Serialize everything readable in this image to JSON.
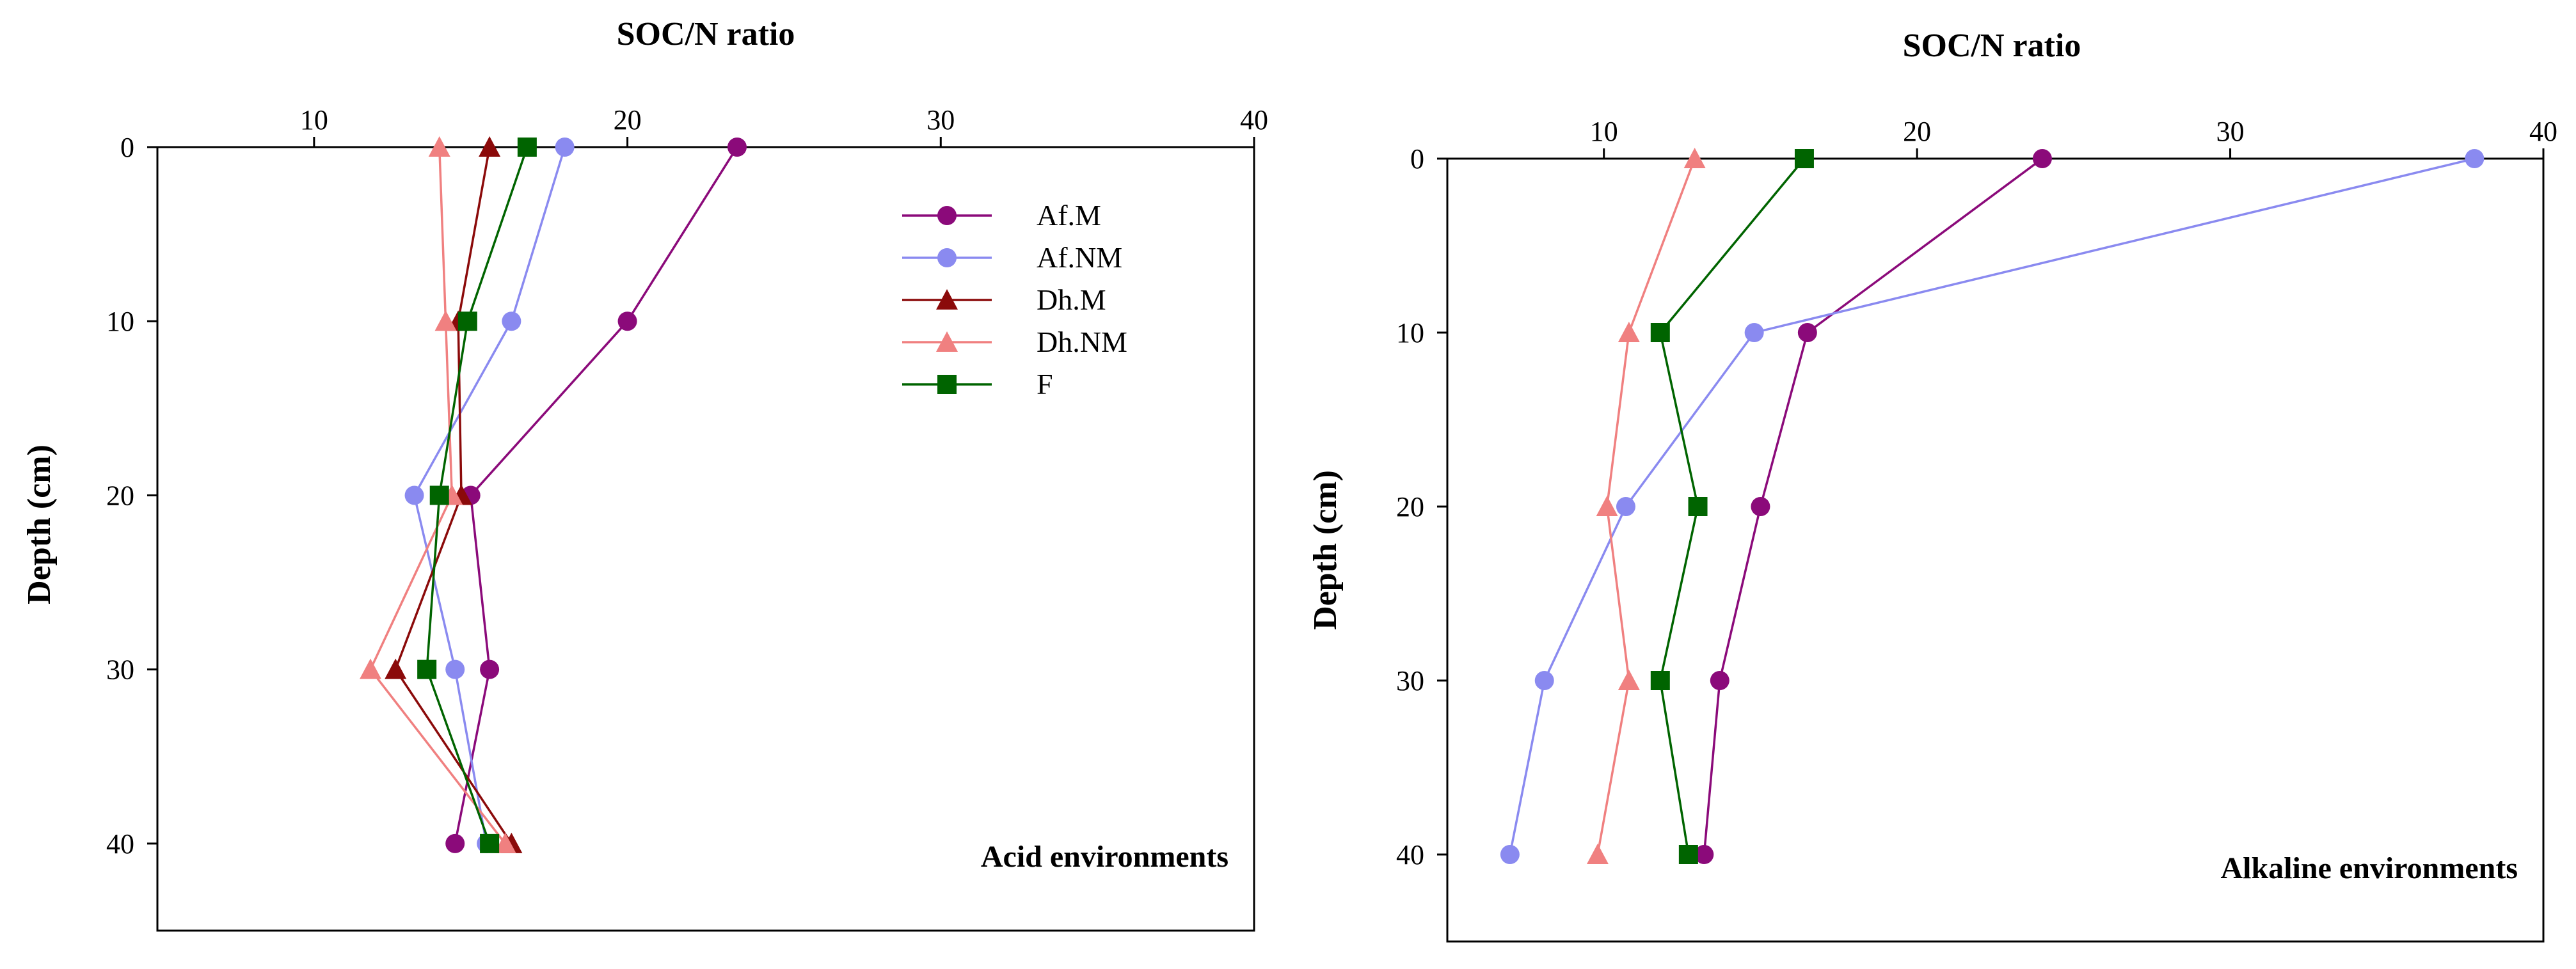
{
  "chart_data": [
    {
      "type": "line",
      "title": "SOC/N ratio",
      "xlabel": "SOC/N ratio",
      "ylabel": "Depth (cm)",
      "annotation": "Acid environments",
      "xlim": [
        5,
        40
      ],
      "ylim": [
        0,
        45
      ],
      "xticks": [
        10,
        20,
        30,
        40
      ],
      "yticks": [
        0,
        10,
        20,
        30,
        40
      ],
      "depth": [
        0,
        10,
        20,
        30,
        40
      ],
      "legend_position": "top-right",
      "series": [
        {
          "name": "Af.M",
          "values": [
            23.5,
            20.0,
            15.0,
            15.6,
            14.5
          ],
          "color": "#8B0A7A",
          "marker": "circle"
        },
        {
          "name": "Af.NM",
          "values": [
            18.0,
            16.3,
            13.2,
            14.5,
            15.5
          ],
          "color": "#8A8AF0",
          "marker": "circle"
        },
        {
          "name": "Dh.M",
          "values": [
            15.6,
            14.6,
            14.7,
            12.6,
            16.3
          ],
          "color": "#8B0A0A",
          "marker": "triangle"
        },
        {
          "name": "Dh.NM",
          "values": [
            14.0,
            14.2,
            14.4,
            11.8,
            16.1
          ],
          "color": "#F08080",
          "marker": "triangle"
        },
        {
          "name": "F",
          "values": [
            16.8,
            14.9,
            14.0,
            13.6,
            15.6
          ],
          "color": "#006400",
          "marker": "square"
        }
      ]
    },
    {
      "type": "line",
      "title": "SOC/N ratio",
      "xlabel": "SOC/N ratio",
      "ylabel": "Depth (cm)",
      "annotation": "Alkaline environments",
      "xlim": [
        5,
        40
      ],
      "ylim": [
        0,
        45
      ],
      "xticks": [
        10,
        20,
        30,
        40
      ],
      "yticks": [
        0,
        10,
        20,
        30,
        40
      ],
      "depth": [
        0,
        10,
        20,
        30,
        40
      ],
      "series": [
        {
          "name": "Af.M",
          "values": [
            24.0,
            16.5,
            15.0,
            13.7,
            13.2
          ],
          "color": "#8B0A7A",
          "marker": "circle"
        },
        {
          "name": "Af.NM",
          "values": [
            37.8,
            14.8,
            10.7,
            8.1,
            7.0
          ],
          "color": "#8A8AF0",
          "marker": "circle"
        },
        {
          "name": "Dh.NM",
          "values": [
            12.9,
            10.8,
            10.1,
            10.8,
            9.8
          ],
          "color": "#F08080",
          "marker": "triangle"
        },
        {
          "name": "F",
          "values": [
            16.4,
            11.8,
            13.0,
            11.8,
            12.7
          ],
          "color": "#006400",
          "marker": "square"
        }
      ]
    }
  ]
}
